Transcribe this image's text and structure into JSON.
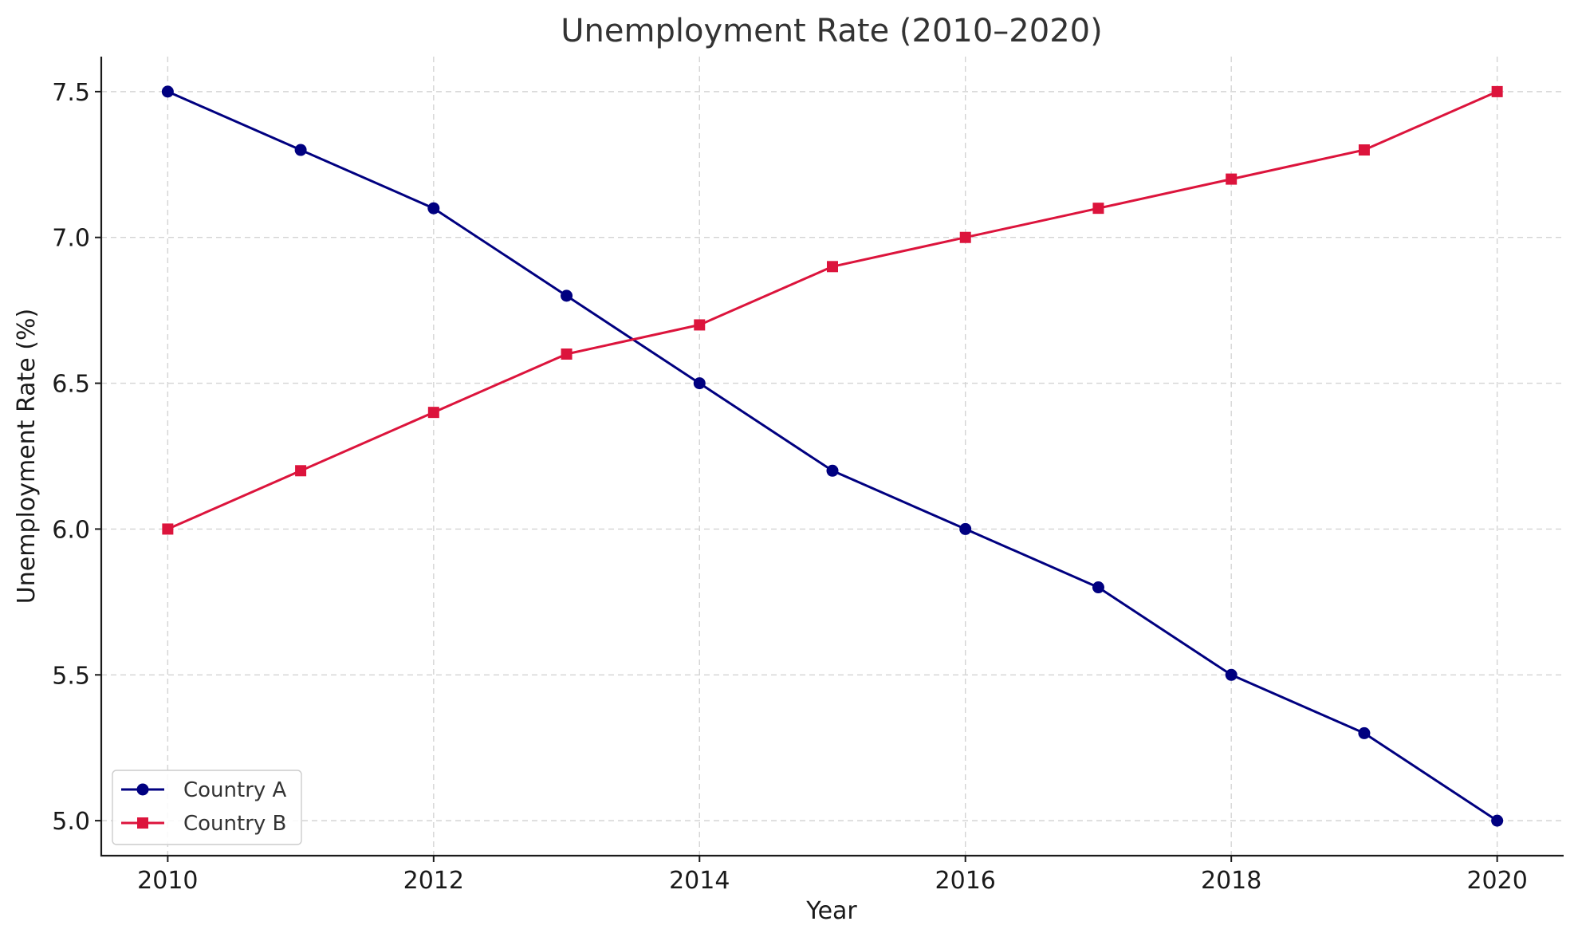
{
  "chart_data": {
    "type": "line",
    "title": "Unemployment Rate (2010–2020)",
    "xlabel": "Year",
    "ylabel": "Unemployment Rate (%)",
    "x": [
      2010,
      2011,
      2012,
      2013,
      2014,
      2015,
      2016,
      2017,
      2018,
      2019,
      2020
    ],
    "xlim": [
      2009.5,
      2020.5
    ],
    "ylim": [
      4.88,
      7.62
    ],
    "x_ticks": [
      "2010",
      "2012",
      "2014",
      "2016",
      "2018",
      "2020"
    ],
    "y_ticks": [
      "5.0",
      "5.5",
      "6.0",
      "6.5",
      "7.0",
      "7.5"
    ],
    "grid": true,
    "legend_position": "lower-left",
    "series": [
      {
        "name": "Country A",
        "color": "#000080",
        "marker": "circle",
        "values": [
          7.5,
          7.3,
          7.1,
          6.8,
          6.5,
          6.2,
          6.0,
          5.8,
          5.5,
          5.3,
          5.0
        ]
      },
      {
        "name": "Country B",
        "color": "#dc143c",
        "marker": "square",
        "values": [
          6.0,
          6.2,
          6.4,
          6.6,
          6.7,
          6.9,
          7.0,
          7.1,
          7.2,
          7.3,
          7.5
        ]
      }
    ]
  }
}
